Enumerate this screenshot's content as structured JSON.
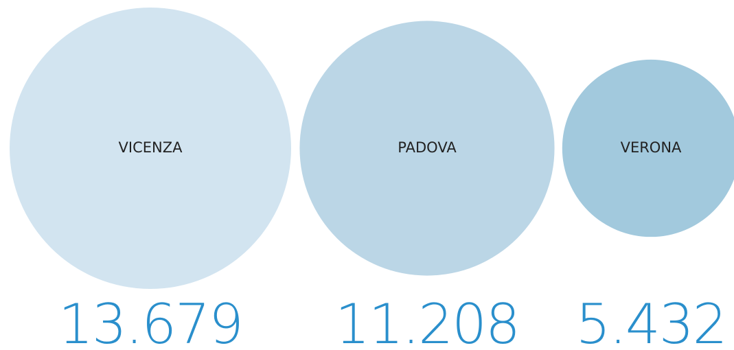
{
  "chart_data": {
    "type": "bubble",
    "categories": [
      "VICENZA",
      "PADOVA",
      "VERONA"
    ],
    "values": [
      13679,
      11208,
      5432
    ],
    "value_labels": [
      "13.679",
      "11.208",
      "5.432"
    ],
    "colors": [
      "#d2e4f0",
      "#bbd6e6",
      "#a2c9dd"
    ],
    "label_color": "#2a8fcc"
  }
}
